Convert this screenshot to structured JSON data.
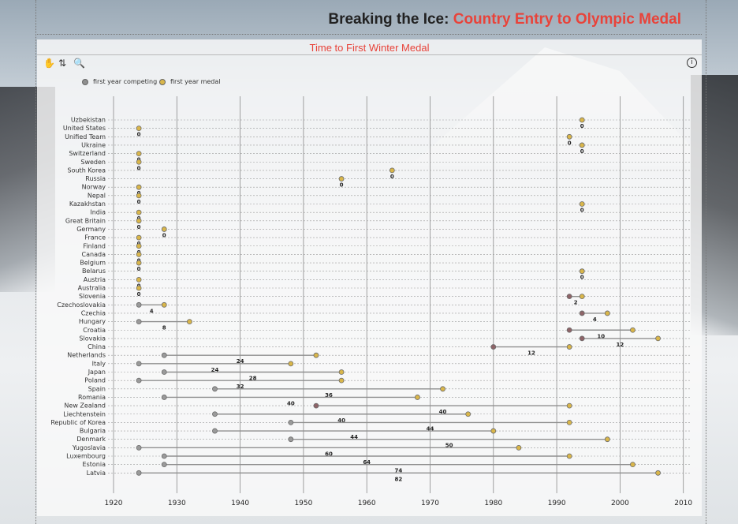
{
  "page_title": {
    "prefix": "Breaking the Ice",
    "sep": ": ",
    "accent": "Country Entry to Olympic Medal"
  },
  "toolbar": {
    "focus_label": "✋",
    "sort_label": "⇅",
    "zoom_label": "🔍",
    "info_label": "i"
  },
  "colors": {
    "accent": "#e8433a",
    "medal": "#d9b64a",
    "entry": "#8e6468",
    "line": "#8f8f8f",
    "grid": "#8a8a8a"
  },
  "chart_data": {
    "type": "dumbbell",
    "title": "Time to First Winter Medal",
    "legend": {
      "placement": "top-left",
      "entries": [
        "first year competing",
        "first year medal"
      ]
    },
    "x_ticks": [
      1920,
      1930,
      1940,
      1950,
      1960,
      1970,
      1980,
      1990,
      2000,
      2010
    ],
    "xlim": [
      1918,
      2011
    ],
    "rows": [
      {
        "country": "Uzbekistan",
        "entry": 1994,
        "medal": 1994,
        "gap": 0
      },
      {
        "country": "United States",
        "entry": 1924,
        "medal": 1924,
        "gap": 0
      },
      {
        "country": "Unified Team",
        "entry": 1992,
        "medal": 1992,
        "gap": 0
      },
      {
        "country": "Ukraine",
        "entry": 1994,
        "medal": 1994,
        "gap": 0
      },
      {
        "country": "Switzerland",
        "entry": 1924,
        "medal": 1924,
        "gap": 0
      },
      {
        "country": "Sweden",
        "entry": 1924,
        "medal": 1924,
        "gap": 0
      },
      {
        "country": "South Korea",
        "entry": 1964,
        "medal": 1964,
        "gap": 0
      },
      {
        "country": "Russia",
        "entry": 1956,
        "medal": 1956,
        "gap": 0
      },
      {
        "country": "Norway",
        "entry": 1924,
        "medal": 1924,
        "gap": 0
      },
      {
        "country": "Nepal",
        "entry": 1924,
        "medal": 1924,
        "gap": 0
      },
      {
        "country": "Kazakhstan",
        "entry": 1994,
        "medal": 1994,
        "gap": 0
      },
      {
        "country": "India",
        "entry": 1924,
        "medal": 1924,
        "gap": 0
      },
      {
        "country": "Great Britain",
        "entry": 1924,
        "medal": 1924,
        "gap": 0
      },
      {
        "country": "Germany",
        "entry": 1928,
        "medal": 1928,
        "gap": 0
      },
      {
        "country": "France",
        "entry": 1924,
        "medal": 1924,
        "gap": 0
      },
      {
        "country": "Finland",
        "entry": 1924,
        "medal": 1924,
        "gap": 0
      },
      {
        "country": "Canada",
        "entry": 1924,
        "medal": 1924,
        "gap": 0
      },
      {
        "country": "Belgium",
        "entry": 1924,
        "medal": 1924,
        "gap": 0
      },
      {
        "country": "Belarus",
        "entry": 1994,
        "medal": 1994,
        "gap": 0
      },
      {
        "country": "Austria",
        "entry": 1924,
        "medal": 1924,
        "gap": 0
      },
      {
        "country": "Australia",
        "entry": 1924,
        "medal": 1924,
        "gap": 0
      },
      {
        "country": "Slovenia",
        "entry": 1992,
        "medal": 1994,
        "gap": 2
      },
      {
        "country": "Czechoslovakia",
        "entry": 1924,
        "medal": 1928,
        "gap": 4
      },
      {
        "country": "Czechia",
        "entry": 1994,
        "medal": 1998,
        "gap": 4
      },
      {
        "country": "Hungary",
        "entry": 1924,
        "medal": 1932,
        "gap": 8
      },
      {
        "country": "Croatia",
        "entry": 1992,
        "medal": 2002,
        "gap": 10
      },
      {
        "country": "Slovakia",
        "entry": 1994,
        "medal": 2006,
        "gap": 12
      },
      {
        "country": "China",
        "entry": 1980,
        "medal": 1992,
        "gap": 12
      },
      {
        "country": "Netherlands",
        "entry": 1928,
        "medal": 1952,
        "gap": 24
      },
      {
        "country": "Italy",
        "entry": 1924,
        "medal": 1948,
        "gap": 24
      },
      {
        "country": "Japan",
        "entry": 1928,
        "medal": 1956,
        "gap": 28
      },
      {
        "country": "Poland",
        "entry": 1924,
        "medal": 1956,
        "gap": 32
      },
      {
        "country": "Spain",
        "entry": 1936,
        "medal": 1972,
        "gap": 36
      },
      {
        "country": "Romania",
        "entry": 1928,
        "medal": 1968,
        "gap": 40
      },
      {
        "country": "New Zealand",
        "entry": 1952,
        "medal": 1992,
        "gap": 40
      },
      {
        "country": "Liechtenstein",
        "entry": 1936,
        "medal": 1976,
        "gap": 40
      },
      {
        "country": "Republic of Korea",
        "entry": 1948,
        "medal": 1992,
        "gap": 44
      },
      {
        "country": "Bulgaria",
        "entry": 1936,
        "medal": 1980,
        "gap": 44
      },
      {
        "country": "Denmark",
        "entry": 1948,
        "medal": 1998,
        "gap": 50
      },
      {
        "country": "Yugoslavia",
        "entry": 1924,
        "medal": 1984,
        "gap": 60
      },
      {
        "country": "Luxembourg",
        "entry": 1928,
        "medal": 1992,
        "gap": 64
      },
      {
        "country": "Estonia",
        "entry": 1928,
        "medal": 2002,
        "gap": 74
      },
      {
        "country": "Latvia",
        "entry": 1924,
        "medal": 2006,
        "gap": 82
      }
    ]
  }
}
